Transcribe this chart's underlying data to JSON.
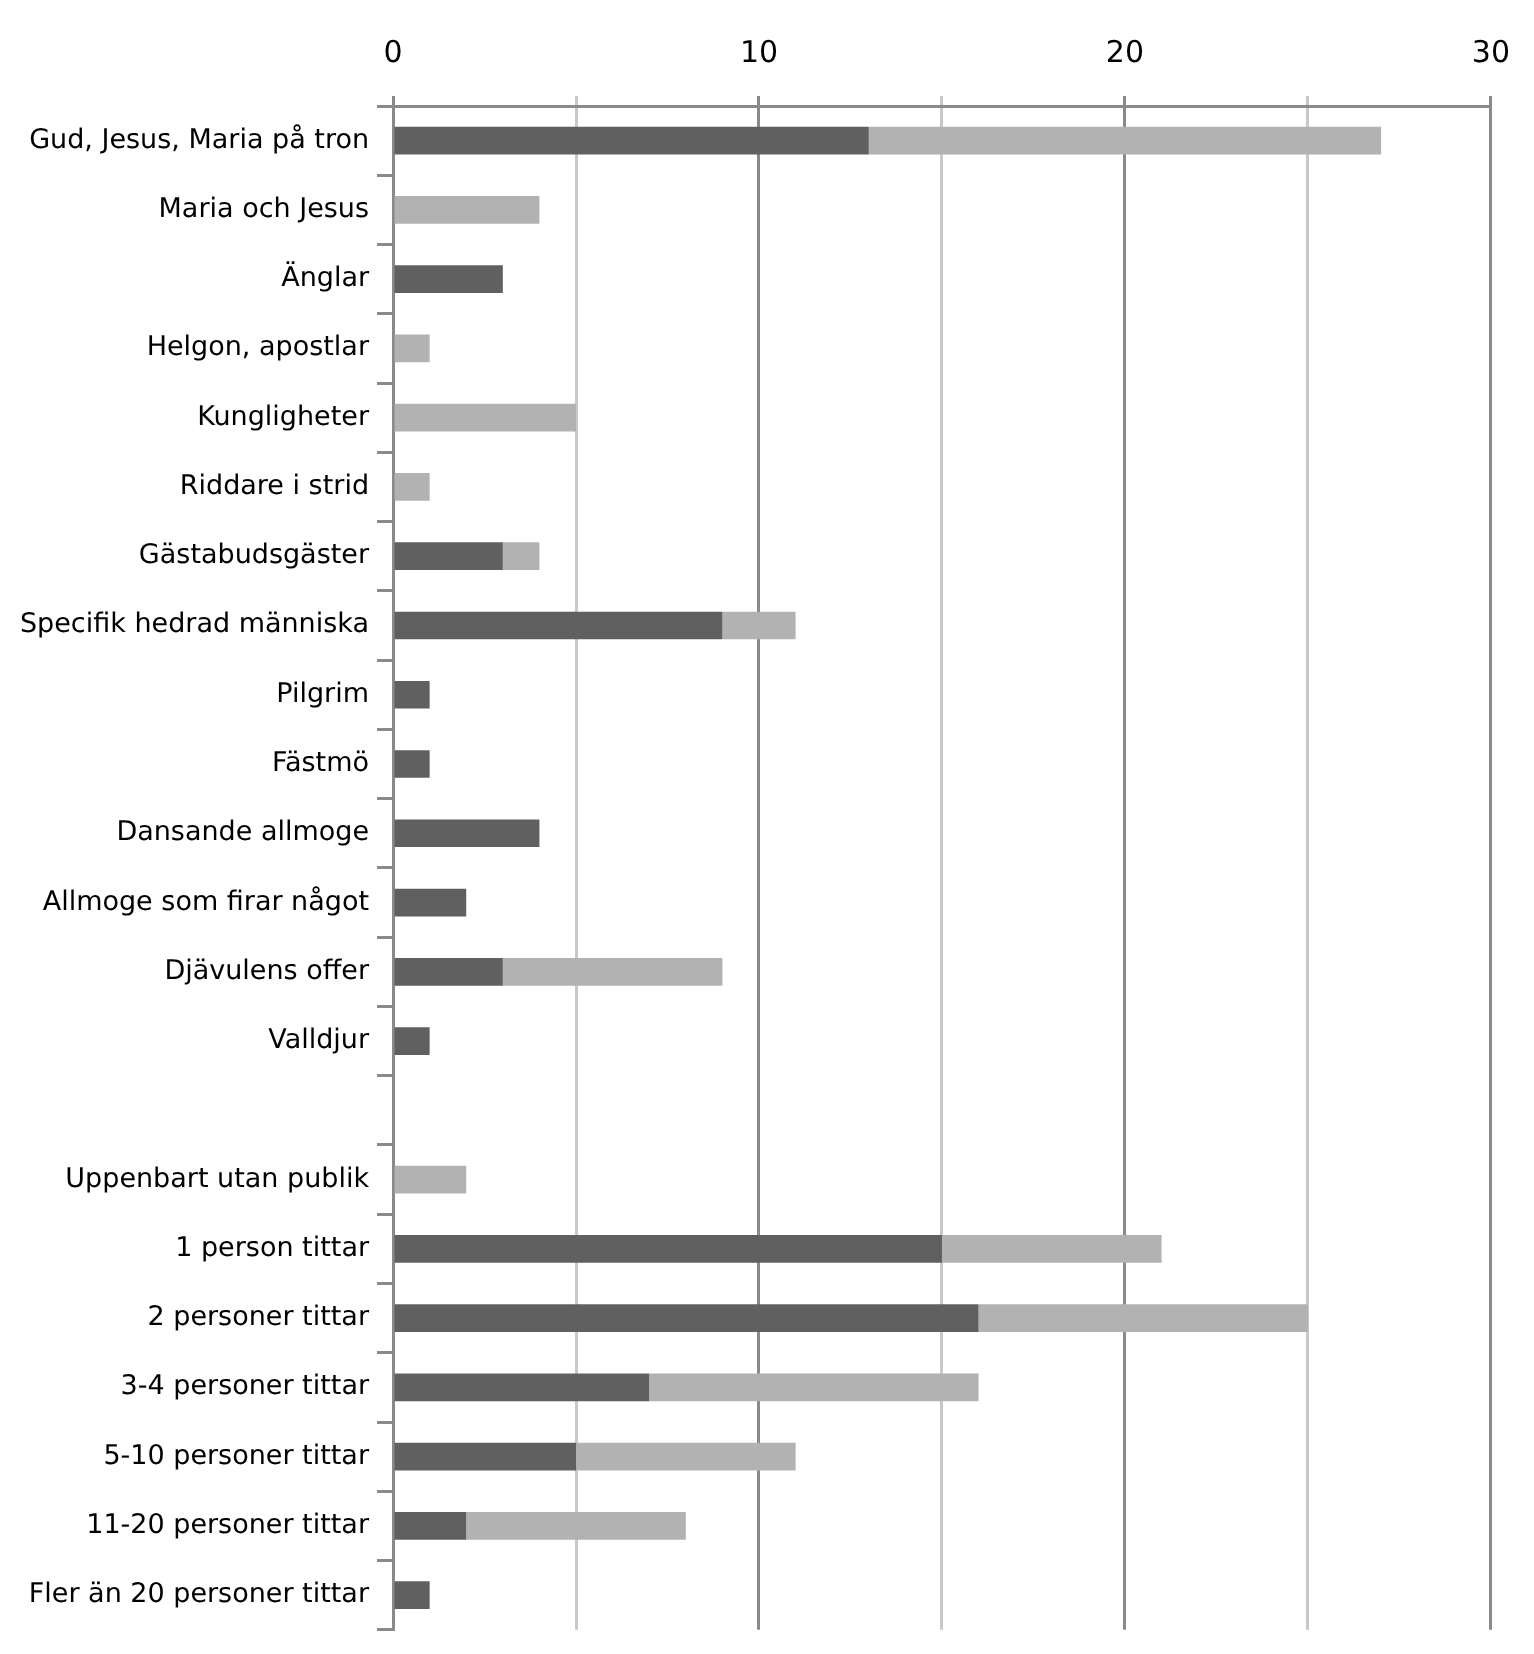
{
  "chart_data": {
    "type": "bar",
    "orientation": "horizontal",
    "stacked": true,
    "categories": [
      "Gud, Jesus, Maria på tron",
      "Maria och Jesus",
      "Änglar",
      "Helgon, apostlar",
      "Kungligheter",
      "Riddare i strid",
      "Gästabudsgäster",
      "Specifik hedrad människa",
      "Pilgrim",
      "Fästmö",
      "Dansande allmoge",
      "Allmoge som firar något",
      "Djävulens offer",
      "Valldjur",
      null,
      "Uppenbart utan publik",
      "1 person tittar",
      "2 personer tittar",
      "3-4 personer tittar",
      "5-10 personer tittar",
      "11-20 personer tittar",
      "Fler än 20 personer tittar"
    ],
    "series": [
      {
        "color": "#606060",
        "values": [
          13,
          null,
          3,
          null,
          null,
          null,
          3,
          9,
          1,
          1,
          4,
          2,
          3,
          1,
          null,
          null,
          15,
          16,
          7,
          5,
          2,
          1
        ]
      },
      {
        "color": "#b2b2b2",
        "values": [
          14,
          4,
          null,
          1,
          5,
          1,
          1,
          2,
          null,
          null,
          null,
          null,
          6,
          null,
          null,
          2,
          6,
          9,
          9,
          6,
          6,
          null
        ]
      }
    ],
    "xlim": [
      0,
      30
    ],
    "xticks": [
      0,
      {
        "value": 5,
        "label": null
      },
      10,
      {
        "value": 15,
        "label": null
      },
      20,
      {
        "value": 25,
        "label": null
      },
      30
    ],
    "grid": "x",
    "legend": false
  }
}
